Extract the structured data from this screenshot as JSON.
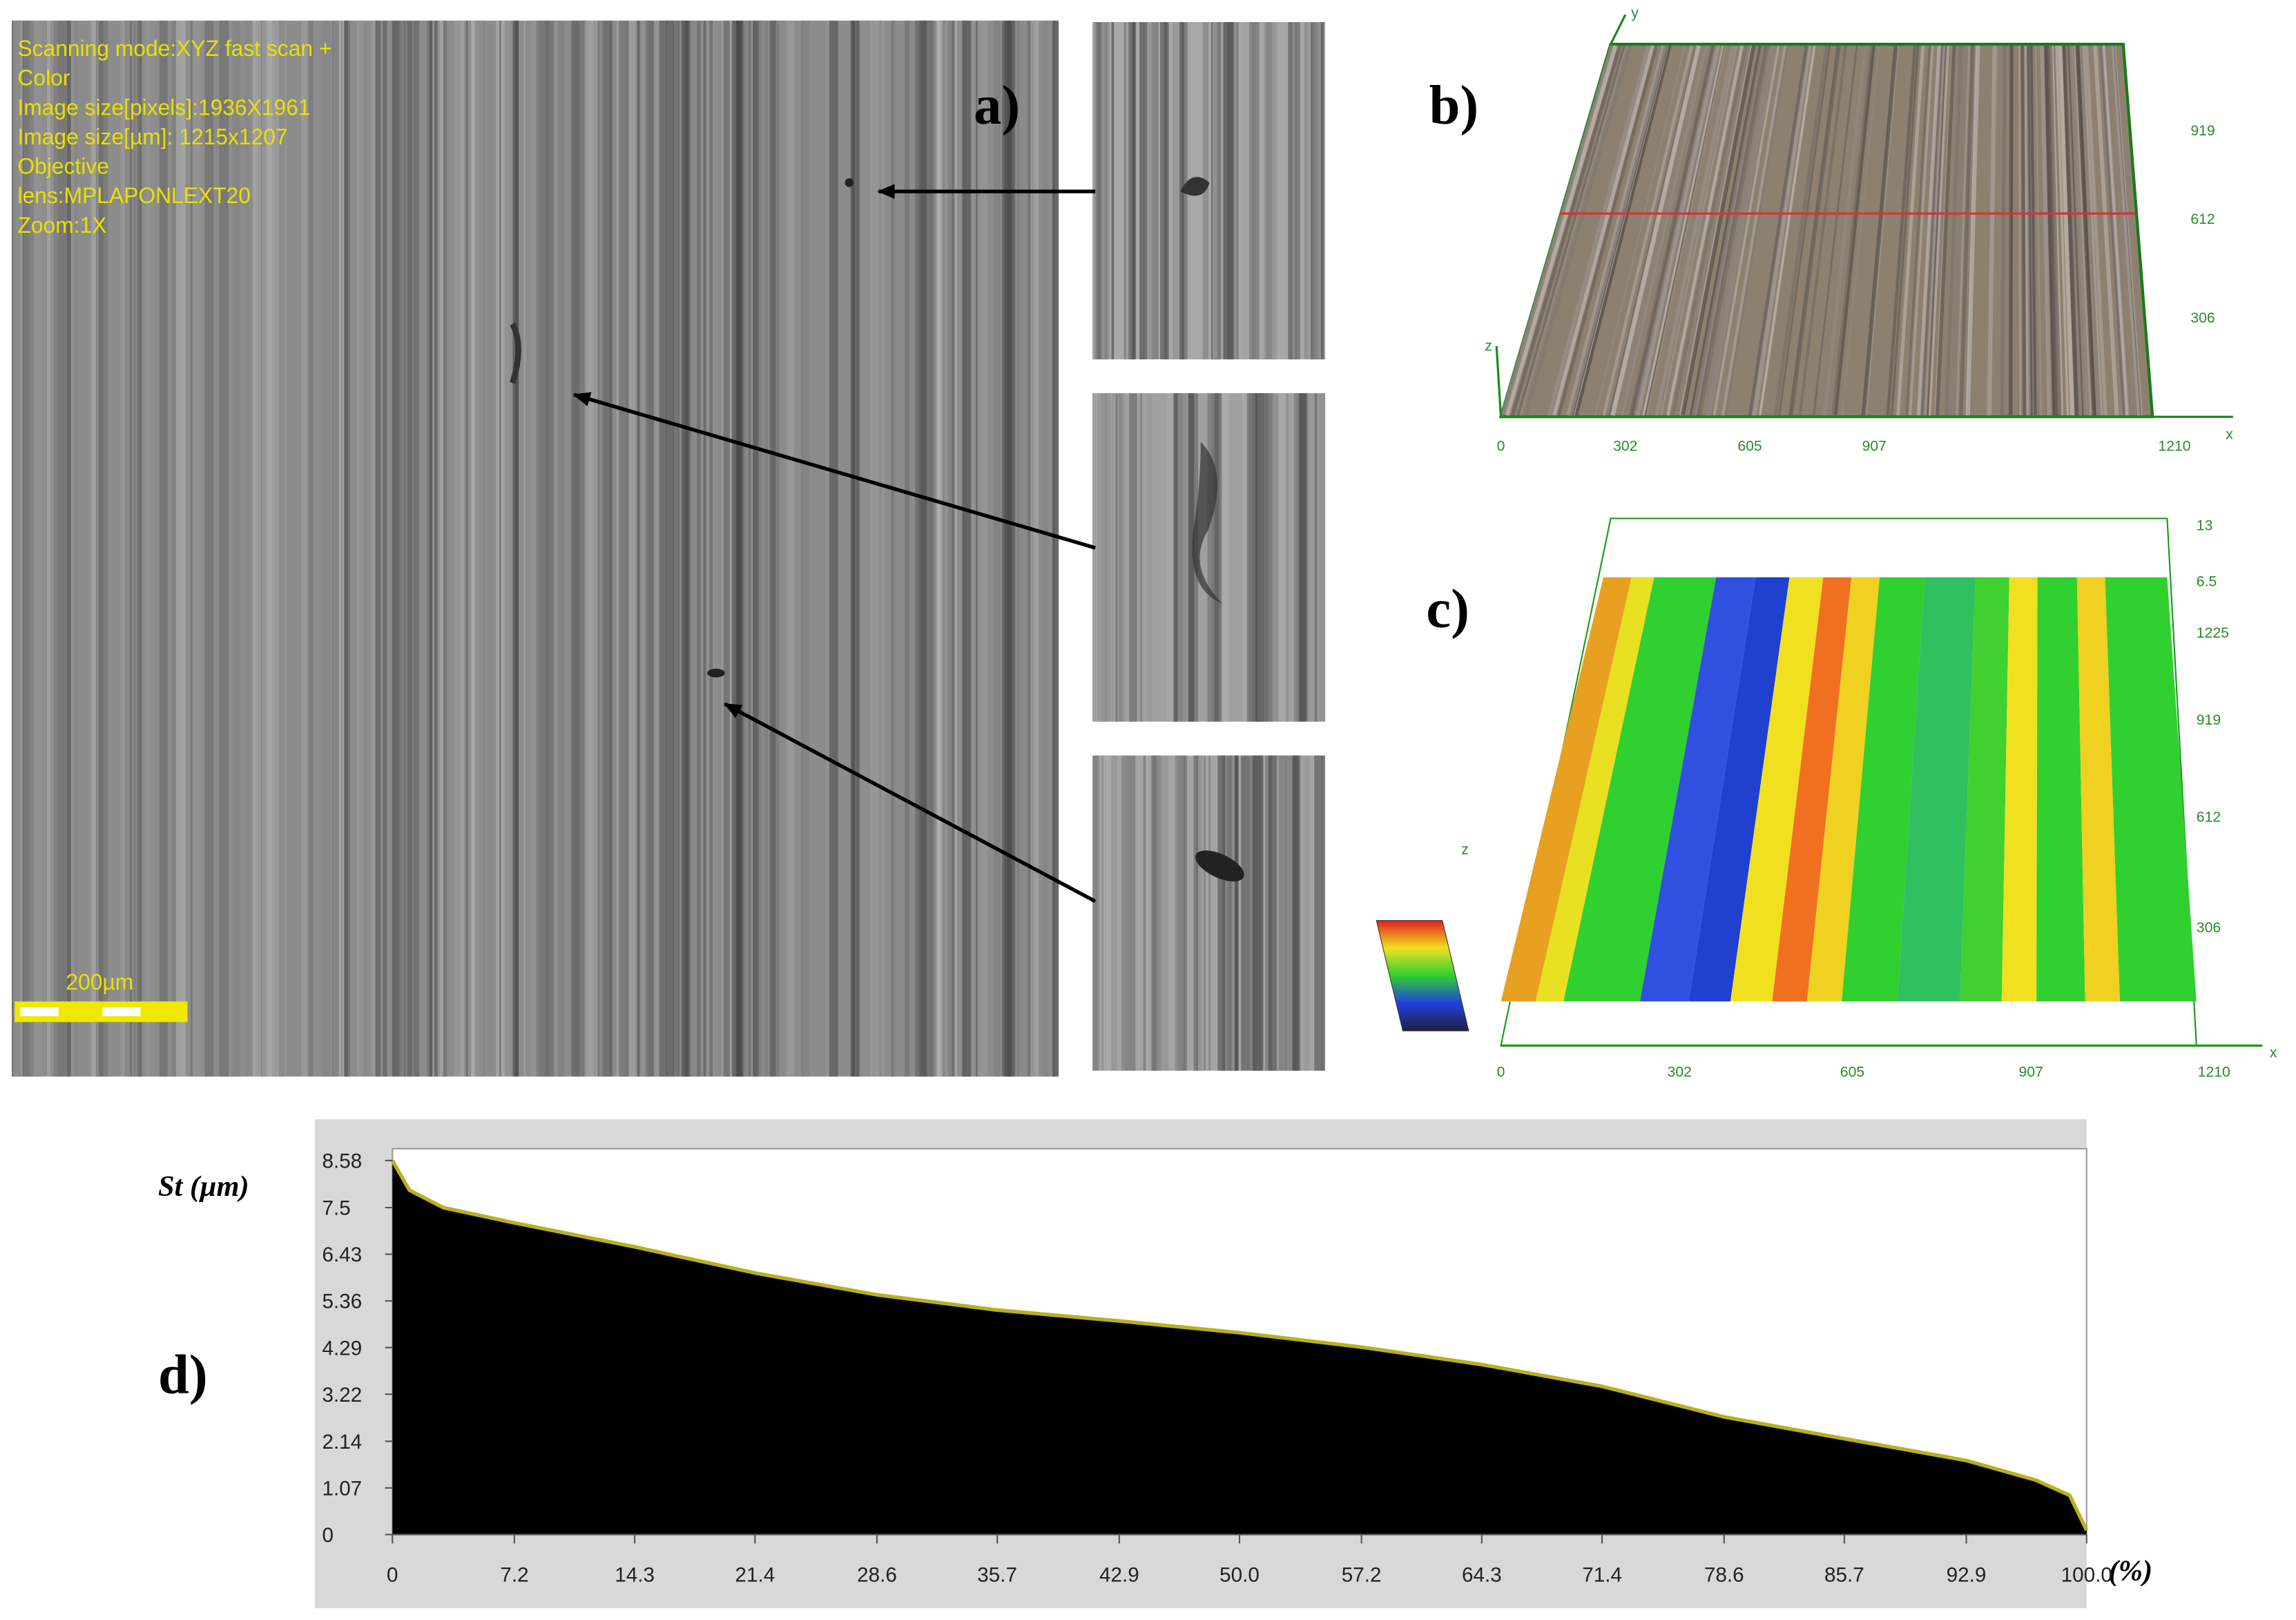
{
  "panel_a": {
    "label": "a)",
    "overlay": [
      "Scanning mode:XYZ fast scan +",
      "Color",
      "Image size[pixels]:1936X1961",
      "Image size[µm]: 1215x1207",
      "Objective",
      "lens:MPLAPONLEXT20",
      "Zoom:1X"
    ],
    "scale_bar": "200µm"
  },
  "panel_b": {
    "label": "b)",
    "x_ticks": [
      "0",
      "302",
      "605",
      "907",
      "1210"
    ],
    "y_ticks": [
      "919",
      "612",
      "306"
    ],
    "axis_labels": [
      "x",
      "y",
      "z"
    ]
  },
  "panel_c": {
    "label": "c)",
    "x_ticks": [
      "0",
      "302",
      "605",
      "907",
      "1210"
    ],
    "right_ticks": [
      "13",
      "6.5",
      "1225",
      "919",
      "612",
      "306"
    ],
    "axis_labels": [
      "x",
      "z"
    ]
  },
  "chart_data": {
    "type": "area",
    "label": "d)",
    "y_label": "St (µm)",
    "x_label": "(%)",
    "color": "#000000",
    "edge_color": "#b8b020",
    "x": [
      0,
      1,
      3,
      7.2,
      14.3,
      21.4,
      28.6,
      35.7,
      42.9,
      50,
      57.2,
      64.3,
      71.4,
      78.6,
      85.7,
      92.9,
      97,
      99,
      100
    ],
    "values": [
      8.58,
      7.9,
      7.5,
      7.15,
      6.6,
      6.0,
      5.5,
      5.15,
      4.9,
      4.63,
      4.3,
      3.9,
      3.4,
      2.7,
      2.2,
      1.7,
      1.25,
      0.9,
      0.1
    ],
    "xlim": [
      0,
      100
    ],
    "ylim": [
      0,
      8.58
    ],
    "xticks": [
      0,
      7.2,
      14.3,
      21.4,
      28.6,
      35.7,
      42.9,
      {
        "value": 50,
        "label": "50.0"
      },
      57.2,
      64.3,
      71.4,
      78.6,
      85.7,
      92.9,
      {
        "value": 100,
        "label": "100.0"
      }
    ],
    "yticks": [
      0,
      1.07,
      2.14,
      3.22,
      4.29,
      5.36,
      6.43,
      7.5,
      8.58
    ]
  }
}
